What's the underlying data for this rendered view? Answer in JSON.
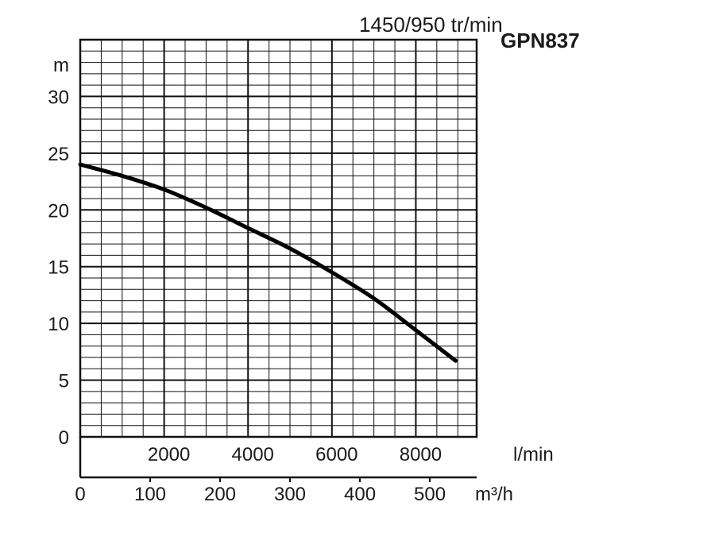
{
  "chart_data": {
    "type": "line",
    "title": "1450/950 tr/min",
    "model": "GPN837",
    "ylabel": "m",
    "ylim": [
      0,
      35
    ],
    "y_ticks": [
      0,
      5,
      10,
      15,
      20,
      25,
      30
    ],
    "x_primary": {
      "unit": "l/min",
      "ticks": [
        2000,
        4000,
        6000,
        8000
      ],
      "lim": [
        0,
        9450
      ]
    },
    "x_secondary": {
      "unit": "m³/h",
      "ticks": [
        0,
        100,
        200,
        300,
        400,
        500
      ],
      "lim": [
        0,
        567
      ]
    },
    "grid": true,
    "series": [
      {
        "x_unit": "l/min",
        "x": [
          0,
          1000,
          2000,
          3000,
          4000,
          5000,
          6000,
          7000,
          8000,
          8950
        ],
        "y": [
          24.0,
          23.0,
          21.8,
          20.2,
          18.4,
          16.6,
          14.5,
          12.2,
          9.4,
          6.7
        ]
      }
    ]
  }
}
